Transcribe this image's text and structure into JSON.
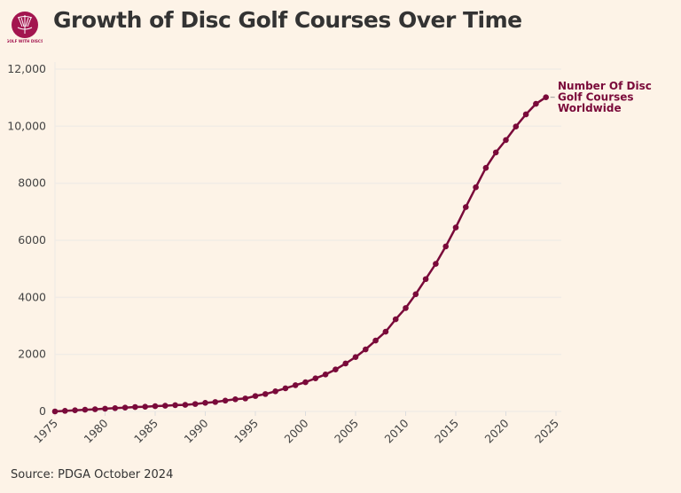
{
  "title": "Growth of Disc Golf Courses Over Time",
  "logo_text": "GOLF WITH DISCS",
  "source": "Source: PDGA October 2024",
  "colors": {
    "background": "#fdf3e7",
    "line": "#7a0a3a",
    "grid": "#f1ece6"
  },
  "chart_data": {
    "type": "line",
    "title": "Growth of Disc Golf Courses Over Time",
    "xlabel": "",
    "ylabel": "",
    "xlim": [
      1975,
      2025
    ],
    "ylim": [
      0,
      12000
    ],
    "grid": "horizontal",
    "x_ticks": [
      "1975",
      "1980",
      "1985",
      "1990",
      "1995",
      "2000",
      "2005",
      "2010",
      "2015",
      "2020",
      "2025"
    ],
    "y_ticks": [
      {
        "value": 0,
        "label": "0"
      },
      {
        "value": 2000,
        "label": "2000"
      },
      {
        "value": 4000,
        "label": "4000"
      },
      {
        "value": 6000,
        "label": "6000"
      },
      {
        "value": 8000,
        "label": "8000"
      },
      {
        "value": 10000,
        "label": "10,000"
      },
      {
        "value": 12000,
        "label": "12,000"
      }
    ],
    "series": [
      {
        "name": "Number Of Disc Golf Courses Worldwide",
        "label_lines": [
          "Number Of Disc",
          "Golf Courses",
          "Worldwide"
        ],
        "x": [
          1975,
          1976,
          1977,
          1978,
          1979,
          1980,
          1981,
          1982,
          1983,
          1984,
          1985,
          1986,
          1987,
          1988,
          1989,
          1990,
          1991,
          1992,
          1993,
          1994,
          1995,
          1996,
          1997,
          1998,
          1999,
          2000,
          2001,
          2002,
          2003,
          2004,
          2005,
          2006,
          2007,
          2008,
          2009,
          2010,
          2011,
          2012,
          2013,
          2014,
          2015,
          2016,
          2017,
          2018,
          2019,
          2020,
          2021,
          2022,
          2023,
          2024
        ],
        "values": [
          0,
          20,
          40,
          60,
          75,
          95,
          115,
          135,
          155,
          165,
          185,
          200,
          220,
          230,
          260,
          300,
          330,
          380,
          425,
          455,
          540,
          610,
          705,
          810,
          920,
          1025,
          1160,
          1295,
          1470,
          1680,
          1905,
          2175,
          2485,
          2795,
          3230,
          3625,
          4110,
          4640,
          5175,
          5785,
          6450,
          7165,
          7860,
          8540,
          9080,
          9515,
          9990,
          10415,
          10785,
          11015
        ]
      }
    ]
  }
}
